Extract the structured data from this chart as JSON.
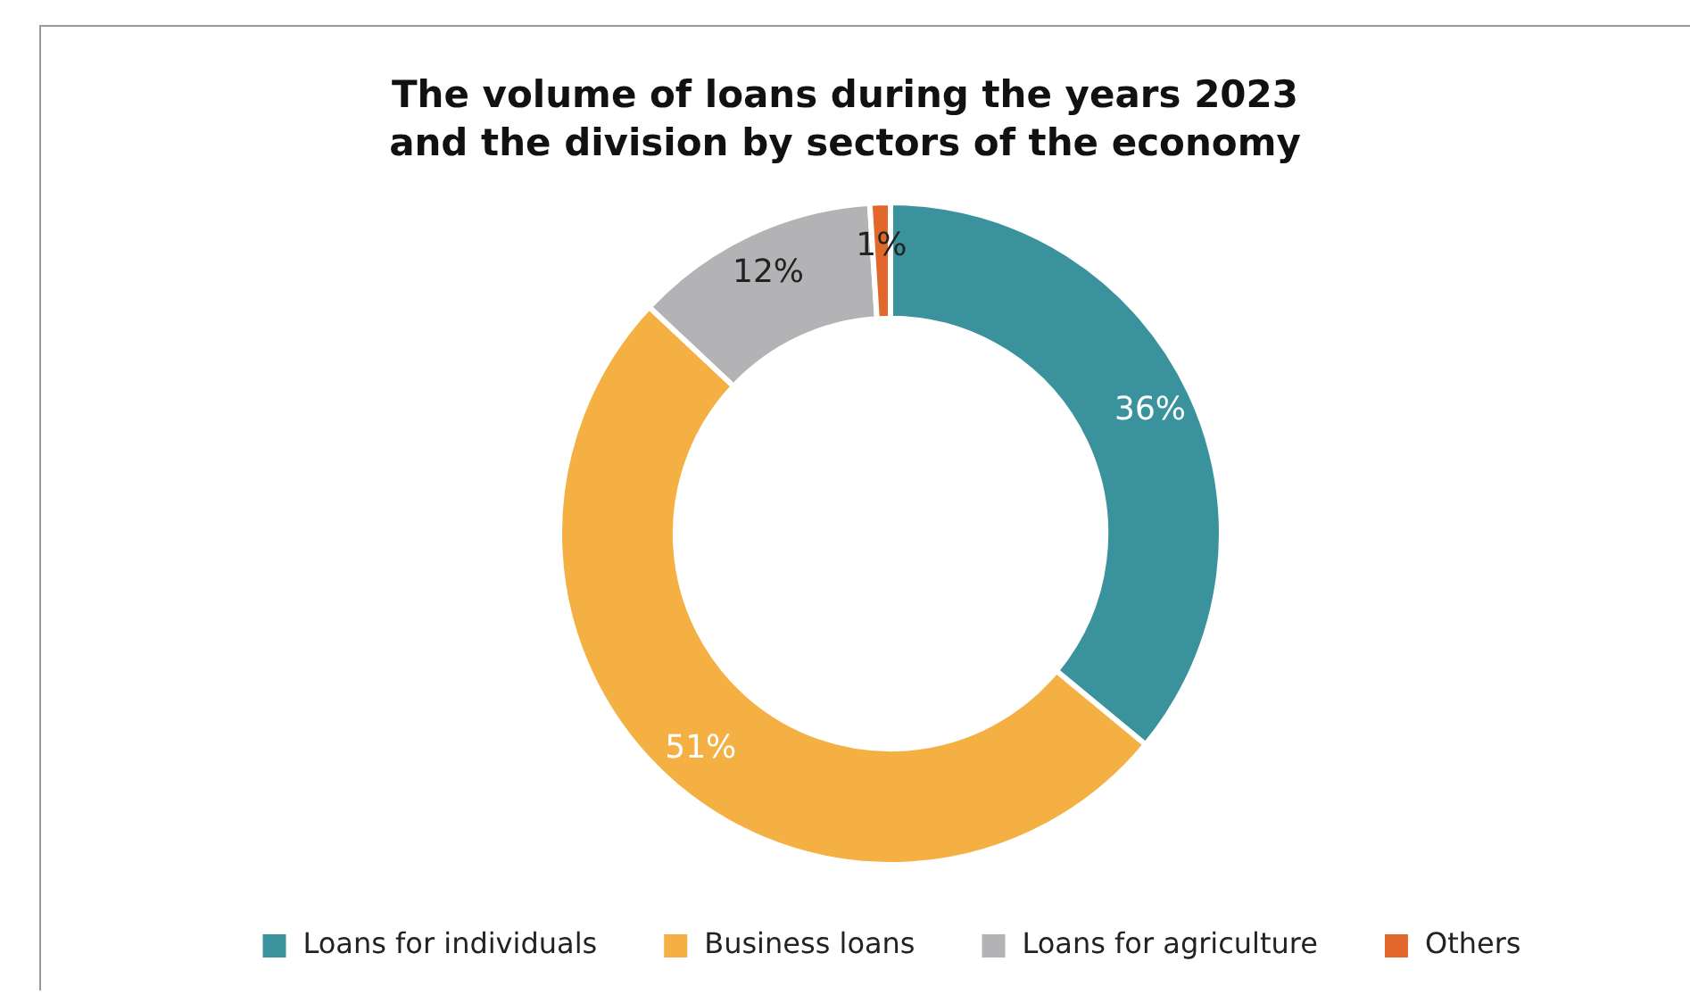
{
  "chart_data": {
    "type": "donut",
    "title": "The volume of loans during the years 2023 and the division by sectors of the economy",
    "categories": [
      "Loans for individuals",
      "Business loans",
      "Loans for agriculture",
      "Others"
    ],
    "values": [
      36,
      51,
      12,
      1
    ],
    "colors": [
      "#3a939c",
      "#f4b042",
      "#b3b3b5",
      "#e2672a"
    ],
    "value_labels": [
      "36%",
      "51%",
      "12%",
      "1%"
    ],
    "legend": "bottom"
  }
}
